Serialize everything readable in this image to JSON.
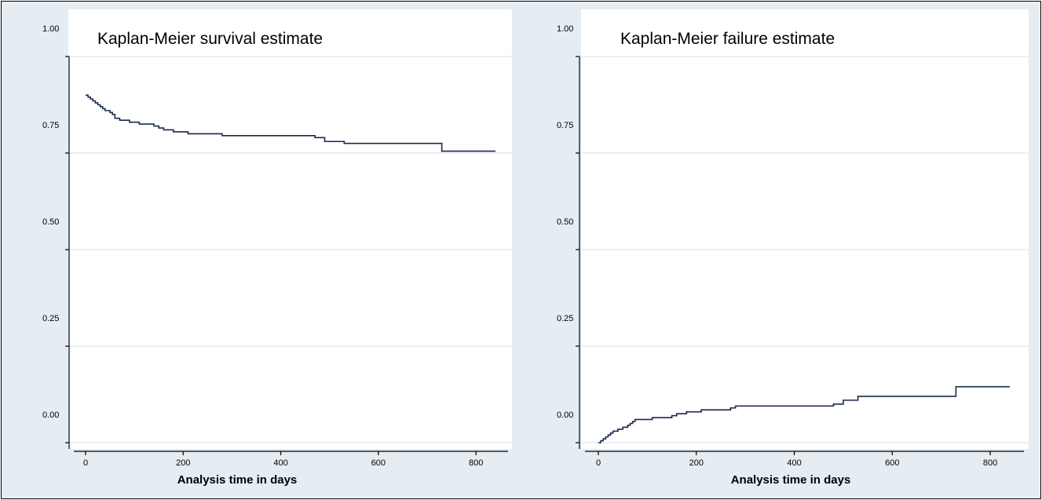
{
  "chart_data": [
    {
      "type": "line",
      "title": "Kaplan-Meier survival estimate",
      "xlabel": "Analysis time in days",
      "ylabel": "",
      "xlim": [
        0,
        840
      ],
      "ylim": [
        0,
        1
      ],
      "x_ticks": [
        0,
        200,
        400,
        600,
        800
      ],
      "x_tick_labels": [
        "0",
        "200",
        "400",
        "600",
        "800"
      ],
      "y_ticks": [
        0,
        0.25,
        0.5,
        0.75,
        1.0
      ],
      "y_tick_labels": [
        "0.00",
        "0.25",
        "0.50",
        "0.75",
        "1.00"
      ],
      "grid": true,
      "series": [
        {
          "step": true,
          "color": "#1a2a4a",
          "x": [
            0,
            5,
            10,
            15,
            20,
            25,
            30,
            35,
            40,
            50,
            55,
            60,
            70,
            90,
            110,
            140,
            150,
            160,
            180,
            210,
            280,
            470,
            490,
            530,
            730,
            840
          ],
          "y": [
            0.9,
            0.895,
            0.89,
            0.885,
            0.88,
            0.875,
            0.87,
            0.865,
            0.86,
            0.855,
            0.85,
            0.84,
            0.835,
            0.83,
            0.825,
            0.82,
            0.815,
            0.81,
            0.805,
            0.8,
            0.795,
            0.79,
            0.78,
            0.775,
            0.755,
            0.755
          ]
        }
      ]
    },
    {
      "type": "line",
      "title": "Kaplan-Meier failure estimate",
      "xlabel": "Analysis time in days",
      "ylabel": "",
      "xlim": [
        0,
        840
      ],
      "ylim": [
        0,
        1
      ],
      "x_ticks": [
        0,
        200,
        400,
        600,
        800
      ],
      "x_tick_labels": [
        "0",
        "200",
        "400",
        "600",
        "800"
      ],
      "y_ticks": [
        0,
        0.25,
        0.5,
        0.75,
        1.0
      ],
      "y_tick_labels": [
        "0.00",
        "0.25",
        "0.50",
        "0.75",
        "1.00"
      ],
      "grid": true,
      "series": [
        {
          "step": true,
          "color": "#1a2a4a",
          "x": [
            0,
            5,
            10,
            15,
            20,
            25,
            30,
            40,
            50,
            60,
            65,
            70,
            75,
            110,
            150,
            160,
            180,
            210,
            270,
            280,
            480,
            500,
            530,
            730,
            840
          ],
          "y": [
            0.0,
            0.005,
            0.01,
            0.015,
            0.02,
            0.025,
            0.03,
            0.035,
            0.04,
            0.045,
            0.05,
            0.055,
            0.06,
            0.065,
            0.07,
            0.075,
            0.08,
            0.085,
            0.09,
            0.095,
            0.1,
            0.11,
            0.12,
            0.145,
            0.145
          ]
        }
      ]
    }
  ]
}
